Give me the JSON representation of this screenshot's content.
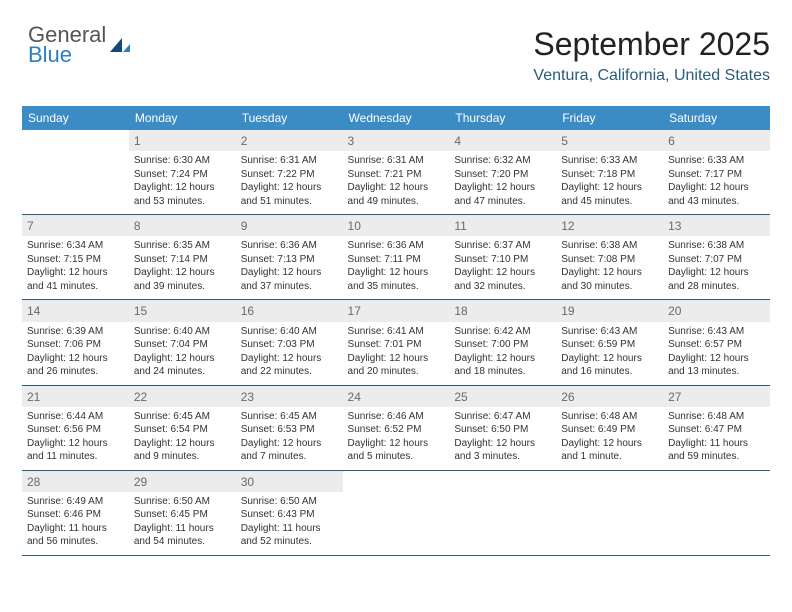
{
  "logo": {
    "text1": "General",
    "text2": "Blue"
  },
  "header": {
    "title": "September 2025",
    "subtitle": "Ventura, California, United States"
  },
  "colors": {
    "header_bg": "#3b8cc4",
    "header_fg": "#ffffff",
    "daterow_bg": "#ececec",
    "row_border": "#2a5d7a",
    "subtitle_color": "#2a5d7a",
    "logo_blue": "#2f7fbf",
    "title_fontsize": 32,
    "subtitle_fontsize": 16,
    "cell_fontsize": 10
  },
  "days_of_week": [
    "Sunday",
    "Monday",
    "Tuesday",
    "Wednesday",
    "Thursday",
    "Friday",
    "Saturday"
  ],
  "weeks": [
    [
      null,
      {
        "n": "1",
        "sr": "Sunrise: 6:30 AM",
        "ss": "Sunset: 7:24 PM",
        "d1": "Daylight: 12 hours",
        "d2": "and 53 minutes."
      },
      {
        "n": "2",
        "sr": "Sunrise: 6:31 AM",
        "ss": "Sunset: 7:22 PM",
        "d1": "Daylight: 12 hours",
        "d2": "and 51 minutes."
      },
      {
        "n": "3",
        "sr": "Sunrise: 6:31 AM",
        "ss": "Sunset: 7:21 PM",
        "d1": "Daylight: 12 hours",
        "d2": "and 49 minutes."
      },
      {
        "n": "4",
        "sr": "Sunrise: 6:32 AM",
        "ss": "Sunset: 7:20 PM",
        "d1": "Daylight: 12 hours",
        "d2": "and 47 minutes."
      },
      {
        "n": "5",
        "sr": "Sunrise: 6:33 AM",
        "ss": "Sunset: 7:18 PM",
        "d1": "Daylight: 12 hours",
        "d2": "and 45 minutes."
      },
      {
        "n": "6",
        "sr": "Sunrise: 6:33 AM",
        "ss": "Sunset: 7:17 PM",
        "d1": "Daylight: 12 hours",
        "d2": "and 43 minutes."
      }
    ],
    [
      {
        "n": "7",
        "sr": "Sunrise: 6:34 AM",
        "ss": "Sunset: 7:15 PM",
        "d1": "Daylight: 12 hours",
        "d2": "and 41 minutes."
      },
      {
        "n": "8",
        "sr": "Sunrise: 6:35 AM",
        "ss": "Sunset: 7:14 PM",
        "d1": "Daylight: 12 hours",
        "d2": "and 39 minutes."
      },
      {
        "n": "9",
        "sr": "Sunrise: 6:36 AM",
        "ss": "Sunset: 7:13 PM",
        "d1": "Daylight: 12 hours",
        "d2": "and 37 minutes."
      },
      {
        "n": "10",
        "sr": "Sunrise: 6:36 AM",
        "ss": "Sunset: 7:11 PM",
        "d1": "Daylight: 12 hours",
        "d2": "and 35 minutes."
      },
      {
        "n": "11",
        "sr": "Sunrise: 6:37 AM",
        "ss": "Sunset: 7:10 PM",
        "d1": "Daylight: 12 hours",
        "d2": "and 32 minutes."
      },
      {
        "n": "12",
        "sr": "Sunrise: 6:38 AM",
        "ss": "Sunset: 7:08 PM",
        "d1": "Daylight: 12 hours",
        "d2": "and 30 minutes."
      },
      {
        "n": "13",
        "sr": "Sunrise: 6:38 AM",
        "ss": "Sunset: 7:07 PM",
        "d1": "Daylight: 12 hours",
        "d2": "and 28 minutes."
      }
    ],
    [
      {
        "n": "14",
        "sr": "Sunrise: 6:39 AM",
        "ss": "Sunset: 7:06 PM",
        "d1": "Daylight: 12 hours",
        "d2": "and 26 minutes."
      },
      {
        "n": "15",
        "sr": "Sunrise: 6:40 AM",
        "ss": "Sunset: 7:04 PM",
        "d1": "Daylight: 12 hours",
        "d2": "and 24 minutes."
      },
      {
        "n": "16",
        "sr": "Sunrise: 6:40 AM",
        "ss": "Sunset: 7:03 PM",
        "d1": "Daylight: 12 hours",
        "d2": "and 22 minutes."
      },
      {
        "n": "17",
        "sr": "Sunrise: 6:41 AM",
        "ss": "Sunset: 7:01 PM",
        "d1": "Daylight: 12 hours",
        "d2": "and 20 minutes."
      },
      {
        "n": "18",
        "sr": "Sunrise: 6:42 AM",
        "ss": "Sunset: 7:00 PM",
        "d1": "Daylight: 12 hours",
        "d2": "and 18 minutes."
      },
      {
        "n": "19",
        "sr": "Sunrise: 6:43 AM",
        "ss": "Sunset: 6:59 PM",
        "d1": "Daylight: 12 hours",
        "d2": "and 16 minutes."
      },
      {
        "n": "20",
        "sr": "Sunrise: 6:43 AM",
        "ss": "Sunset: 6:57 PM",
        "d1": "Daylight: 12 hours",
        "d2": "and 13 minutes."
      }
    ],
    [
      {
        "n": "21",
        "sr": "Sunrise: 6:44 AM",
        "ss": "Sunset: 6:56 PM",
        "d1": "Daylight: 12 hours",
        "d2": "and 11 minutes."
      },
      {
        "n": "22",
        "sr": "Sunrise: 6:45 AM",
        "ss": "Sunset: 6:54 PM",
        "d1": "Daylight: 12 hours",
        "d2": "and 9 minutes."
      },
      {
        "n": "23",
        "sr": "Sunrise: 6:45 AM",
        "ss": "Sunset: 6:53 PM",
        "d1": "Daylight: 12 hours",
        "d2": "and 7 minutes."
      },
      {
        "n": "24",
        "sr": "Sunrise: 6:46 AM",
        "ss": "Sunset: 6:52 PM",
        "d1": "Daylight: 12 hours",
        "d2": "and 5 minutes."
      },
      {
        "n": "25",
        "sr": "Sunrise: 6:47 AM",
        "ss": "Sunset: 6:50 PM",
        "d1": "Daylight: 12 hours",
        "d2": "and 3 minutes."
      },
      {
        "n": "26",
        "sr": "Sunrise: 6:48 AM",
        "ss": "Sunset: 6:49 PM",
        "d1": "Daylight: 12 hours",
        "d2": "and 1 minute."
      },
      {
        "n": "27",
        "sr": "Sunrise: 6:48 AM",
        "ss": "Sunset: 6:47 PM",
        "d1": "Daylight: 11 hours",
        "d2": "and 59 minutes."
      }
    ],
    [
      {
        "n": "28",
        "sr": "Sunrise: 6:49 AM",
        "ss": "Sunset: 6:46 PM",
        "d1": "Daylight: 11 hours",
        "d2": "and 56 minutes."
      },
      {
        "n": "29",
        "sr": "Sunrise: 6:50 AM",
        "ss": "Sunset: 6:45 PM",
        "d1": "Daylight: 11 hours",
        "d2": "and 54 minutes."
      },
      {
        "n": "30",
        "sr": "Sunrise: 6:50 AM",
        "ss": "Sunset: 6:43 PM",
        "d1": "Daylight: 11 hours",
        "d2": "and 52 minutes."
      },
      null,
      null,
      null,
      null
    ]
  ]
}
